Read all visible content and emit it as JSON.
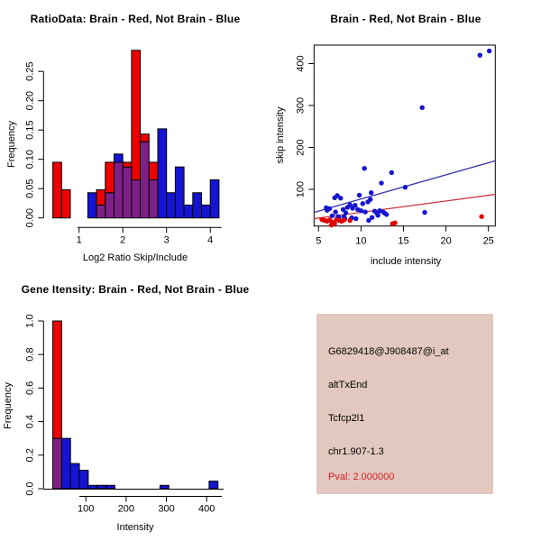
{
  "colors": {
    "background": "#ffffff",
    "hist_red": "#EE0000",
    "hist_blue": "#1414D2",
    "overlap_purple": "#7E2088",
    "scatter_red": "#E00000",
    "scatter_blue": "#1414D2",
    "fit_line_blue": "#3333AA",
    "fit_line_red": "#CC3340",
    "axis_black": "#000000",
    "info_box_bg": "#E2C8BF",
    "info_text_black": "#000000",
    "pval_red": "#CC2222"
  },
  "chart_data": [
    {
      "type": "bar",
      "subtype": "overlaid-histogram",
      "title": "RatioData: Brain - Red, Not Brain - Blue",
      "xlabel": "Log2 Ratio Skip/Include",
      "ylabel": "Frequency",
      "bin_width": 0.2,
      "bin_starts": [
        0.4,
        0.6,
        0.8,
        1.0,
        1.2,
        1.4,
        1.6,
        1.8,
        2.0,
        2.2,
        2.4,
        2.6,
        2.8,
        3.0,
        3.2,
        3.4,
        3.6,
        3.8,
        4.0
      ],
      "series": [
        {
          "name": "Brain (red)",
          "color_key": "hist_red",
          "values": [
            0.095,
            0.048,
            0,
            0,
            0,
            0.048,
            0.095,
            0.095,
            0.095,
            0.286,
            0.143,
            0.095,
            0,
            0,
            0,
            0,
            0,
            0,
            0
          ]
        },
        {
          "name": "Not Brain (blue)",
          "color_key": "hist_blue",
          "values": [
            0,
            0,
            0,
            0,
            0.043,
            0.022,
            0.043,
            0.109,
            0.087,
            0.065,
            0.13,
            0.065,
            0.152,
            0.043,
            0.087,
            0.022,
            0.043,
            0.022,
            0.065
          ]
        }
      ],
      "x_ticks": [
        1,
        2,
        3,
        4
      ],
      "x_tick_labels": [
        "1",
        "2",
        "3",
        "4"
      ],
      "y_ticks": [
        0.0,
        0.05,
        0.1,
        0.15,
        0.2,
        0.25
      ],
      "y_tick_labels": [
        "0.00",
        "0.05",
        "0.10",
        "0.15",
        "0.20",
        "0.25"
      ],
      "xlim": [
        0.4,
        4.3
      ],
      "ylim": [
        0,
        0.29
      ],
      "grid": false,
      "legend": "none"
    },
    {
      "type": "scatter",
      "title": "Brain - Red, Not Brain - Blue",
      "xlabel": "include intensity",
      "ylabel": "skip intensity",
      "x_ticks": [
        5,
        10,
        15,
        20,
        25
      ],
      "x_tick_labels": [
        "5",
        "10",
        "15",
        "20",
        "25"
      ],
      "y_ticks": [
        100,
        200,
        300,
        400
      ],
      "y_tick_labels": [
        "100",
        "200",
        "300",
        "400"
      ],
      "xlim": [
        4.4,
        26
      ],
      "ylim": [
        10,
        445
      ],
      "grid": false,
      "series": [
        {
          "name": "Not Brain (blue)",
          "color_key": "scatter_blue",
          "points": [
            [
              24,
              420
            ],
            [
              25.1,
              430
            ],
            [
              17.2,
              295
            ],
            [
              10.4,
              150
            ],
            [
              13.6,
              140
            ],
            [
              12.4,
              115
            ],
            [
              15.2,
              105
            ],
            [
              11.2,
              92
            ],
            [
              9.8,
              86
            ],
            [
              7.2,
              85
            ],
            [
              6.9,
              80
            ],
            [
              7.6,
              79
            ],
            [
              11.1,
              76
            ],
            [
              10.8,
              70
            ],
            [
              10.2,
              66
            ],
            [
              8.7,
              63
            ],
            [
              9.3,
              62
            ],
            [
              8.4,
              57
            ],
            [
              9.0,
              55
            ],
            [
              5.9,
              56
            ],
            [
              6.3,
              54
            ],
            [
              9.6,
              52
            ],
            [
              7.9,
              52
            ],
            [
              6.0,
              50
            ],
            [
              10.0,
              49
            ],
            [
              12.2,
              49
            ],
            [
              11.6,
              48
            ],
            [
              12.6,
              46
            ],
            [
              10.5,
              46
            ],
            [
              7.0,
              46
            ],
            [
              12.8,
              43
            ],
            [
              11.9,
              42
            ],
            [
              8.2,
              44
            ],
            [
              17.5,
              45
            ],
            [
              13.0,
              40
            ],
            [
              12.0,
              38
            ],
            [
              6.6,
              37
            ],
            [
              8.0,
              35
            ],
            [
              7.3,
              35
            ],
            [
              7.4,
              33
            ],
            [
              11.3,
              33
            ],
            [
              8.9,
              32
            ],
            [
              9.4,
              30
            ],
            [
              8.1,
              30
            ],
            [
              10.9,
              26
            ]
          ]
        },
        {
          "name": "Brain (red)",
          "color_key": "scatter_red",
          "points": [
            [
              5.4,
              28
            ],
            [
              5.7,
              26
            ],
            [
              6.0,
              24
            ],
            [
              6.3,
              27
            ],
            [
              6.6,
              22
            ],
            [
              6.9,
              18
            ],
            [
              7.1,
              28
            ],
            [
              7.4,
              26
            ],
            [
              7.7,
              24
            ],
            [
              8.0,
              27
            ],
            [
              8.7,
              26
            ],
            [
              6.5,
              15
            ],
            [
              13.7,
              18
            ],
            [
              14.0,
              20
            ],
            [
              24.2,
              35
            ]
          ]
        }
      ],
      "fit_lines": [
        {
          "name": "not-brain-fit",
          "color_key": "fit_line_blue",
          "from": [
            4.45,
            45
          ],
          "to": [
            25.8,
            168
          ]
        },
        {
          "name": "brain-fit",
          "color_key": "fit_line_red",
          "from": [
            4.45,
            30
          ],
          "to": [
            25.8,
            88
          ]
        }
      ]
    },
    {
      "type": "bar",
      "subtype": "overlaid-histogram",
      "title": "Gene Itensity: Brain - Red, Not Brain - Blue",
      "xlabel": "Intensity",
      "ylabel": "Frequency",
      "bin_width": 22,
      "bin_starts": [
        18,
        40,
        62,
        84,
        106,
        128,
        150,
        284,
        406
      ],
      "series": [
        {
          "name": "Brain (red)",
          "color_key": "hist_red",
          "values": [
            1.0,
            0,
            0,
            0,
            0,
            0,
            0,
            0,
            0
          ]
        },
        {
          "name": "Not Brain (blue)",
          "color_key": "hist_blue",
          "values": [
            0.3,
            0.3,
            0.15,
            0.11,
            0.02,
            0.02,
            0.02,
            0.02,
            0.045
          ]
        }
      ],
      "x_ticks": [
        100,
        200,
        300,
        400
      ],
      "x_tick_labels": [
        "100",
        "200",
        "300",
        "400"
      ],
      "y_ticks": [
        0.0,
        0.2,
        0.4,
        0.6,
        0.8,
        1.0
      ],
      "y_tick_labels": [
        "0.0",
        "0.2",
        "0.4",
        "0.6",
        "0.8",
        "1.0"
      ],
      "xlim": [
        15,
        450
      ],
      "ylim": [
        0,
        1.0
      ],
      "grid": false,
      "legend": "none"
    }
  ],
  "info_panel": {
    "lines": [
      {
        "text": "G6829418@J908487@i_at",
        "color": "#000000"
      },
      {
        "text": "altTxEnd",
        "color": "#000000"
      },
      {
        "text": "Tcfcp2l1",
        "color": "#000000"
      },
      {
        "text": "chr1.907-1.3",
        "color": "#000000"
      },
      {
        "text": "Pval: 2.000000",
        "color": "#CC2222"
      }
    ]
  }
}
